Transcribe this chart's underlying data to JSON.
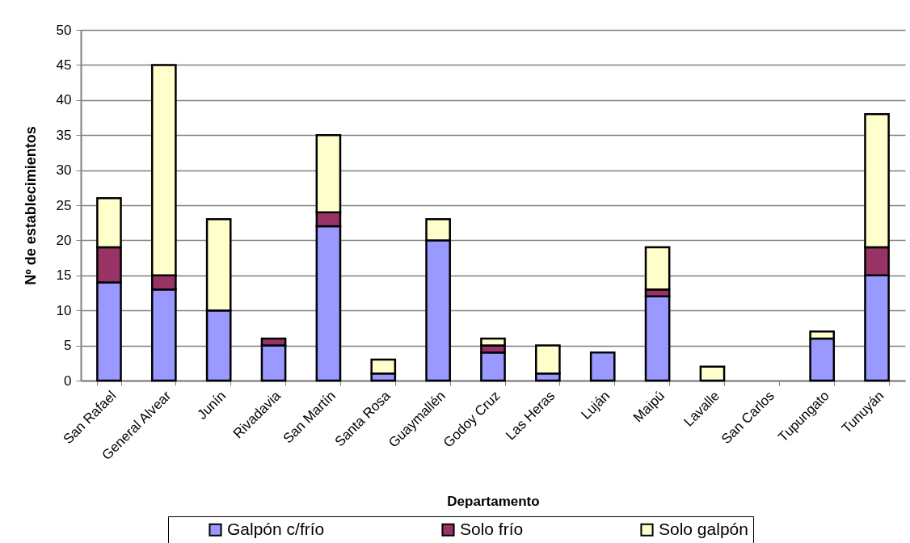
{
  "chart_data": {
    "type": "bar",
    "stacked": true,
    "xlabel": "Departamento",
    "ylabel": "Nº de establecimientos",
    "categories": [
      "San Rafael",
      "General Alvear",
      "Junín",
      "Rivadavia",
      "San Martín",
      "Santa Rosa",
      "Guaymallén",
      "Godoy Cruz",
      "Las Heras",
      "Luján",
      "Maipú",
      "Lavalle",
      "San Carlos",
      "Tupungato",
      "Tunuyán"
    ],
    "series": [
      {
        "name": "Galpón c/frío",
        "color": "#9999ff",
        "values": [
          14,
          13,
          10,
          5,
          22,
          1,
          20,
          4,
          1,
          4,
          12,
          0,
          0,
          6,
          15
        ]
      },
      {
        "name": "Solo frío",
        "color": "#993366",
        "values": [
          5,
          2,
          0,
          1,
          2,
          0,
          0,
          1,
          0,
          0,
          1,
          0,
          0,
          0,
          4
        ]
      },
      {
        "name": "Solo galpón",
        "color": "#ffffcc",
        "values": [
          7,
          30,
          13,
          0,
          11,
          2,
          3,
          1,
          4,
          0,
          6,
          2,
          0,
          1,
          19
        ]
      }
    ],
    "ylim": [
      0,
      50
    ],
    "yticks": [
      0,
      5,
      10,
      15,
      20,
      25,
      30,
      35,
      40,
      45,
      50
    ],
    "grid": "y",
    "legend": "bottom"
  }
}
